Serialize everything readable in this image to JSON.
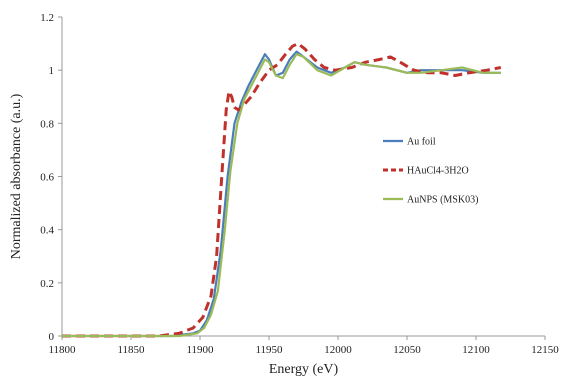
{
  "chart_data": {
    "type": "line",
    "title": "",
    "xlabel": "Energy (eV)",
    "ylabel": "Normalized absorbance (a.u.)",
    "xlim": [
      11800,
      12150
    ],
    "ylim": [
      0,
      1.2
    ],
    "x_ticks": [
      "11800",
      "11850",
      "11900",
      "11950",
      "12000",
      "12050",
      "12100",
      "12150"
    ],
    "y_ticks": [
      "0",
      "0.2",
      "0.4",
      "0.6",
      "0.8",
      "1",
      "1.2"
    ],
    "grid": false,
    "legend_position": "right",
    "series": [
      {
        "name": "Au foil",
        "color": "#4a7ebb",
        "dash": "solid",
        "points": [
          [
            11800,
            0.0
          ],
          [
            11880,
            0.0
          ],
          [
            11895,
            0.01
          ],
          [
            11900,
            0.02
          ],
          [
            11905,
            0.06
          ],
          [
            11910,
            0.14
          ],
          [
            11915,
            0.32
          ],
          [
            11920,
            0.6
          ],
          [
            11925,
            0.8
          ],
          [
            11930,
            0.88
          ],
          [
            11935,
            0.94
          ],
          [
            11940,
            0.99
          ],
          [
            11944,
            1.03
          ],
          [
            11947,
            1.06
          ],
          [
            11950,
            1.04
          ],
          [
            11955,
            0.98
          ],
          [
            11960,
            0.99
          ],
          [
            11965,
            1.04
          ],
          [
            11970,
            1.07
          ],
          [
            11975,
            1.05
          ],
          [
            11985,
            1.01
          ],
          [
            11995,
            0.99
          ],
          [
            12005,
            1.01
          ],
          [
            12012,
            1.03
          ],
          [
            12020,
            1.02
          ],
          [
            12035,
            1.01
          ],
          [
            12050,
            0.99
          ],
          [
            12060,
            1.0
          ],
          [
            12075,
            1.0
          ],
          [
            12090,
            1.0
          ],
          [
            12105,
            0.99
          ],
          [
            12118,
            0.99
          ]
        ]
      },
      {
        "name": "HAuCl4-3H2O",
        "color": "#c0312b",
        "dash": "dashed",
        "points": [
          [
            11800,
            0.0
          ],
          [
            11870,
            0.0
          ],
          [
            11885,
            0.01
          ],
          [
            11895,
            0.03
          ],
          [
            11902,
            0.07
          ],
          [
            11908,
            0.15
          ],
          [
            11912,
            0.3
          ],
          [
            11916,
            0.62
          ],
          [
            11919,
            0.85
          ],
          [
            11921,
            0.92
          ],
          [
            11923,
            0.9
          ],
          [
            11925,
            0.86
          ],
          [
            11928,
            0.85
          ],
          [
            11932,
            0.87
          ],
          [
            11937,
            0.9
          ],
          [
            11943,
            0.95
          ],
          [
            11950,
            1.0
          ],
          [
            11956,
            1.02
          ],
          [
            11962,
            1.06
          ],
          [
            11967,
            1.09
          ],
          [
            11971,
            1.1
          ],
          [
            11976,
            1.08
          ],
          [
            11983,
            1.04
          ],
          [
            11990,
            1.01
          ],
          [
            11998,
            1.0
          ],
          [
            12010,
            1.01
          ],
          [
            12020,
            1.03
          ],
          [
            12030,
            1.04
          ],
          [
            12038,
            1.05
          ],
          [
            12045,
            1.03
          ],
          [
            12055,
            1.0
          ],
          [
            12065,
            0.99
          ],
          [
            12075,
            0.99
          ],
          [
            12085,
            0.98
          ],
          [
            12095,
            0.99
          ],
          [
            12108,
            1.0
          ],
          [
            12118,
            1.01
          ]
        ]
      },
      {
        "name": "AuNPS (MSK03)",
        "color": "#9bbb59",
        "dash": "solid",
        "points": [
          [
            11800,
            0.0
          ],
          [
            11885,
            0.0
          ],
          [
            11898,
            0.01
          ],
          [
            11903,
            0.03
          ],
          [
            11908,
            0.08
          ],
          [
            11913,
            0.17
          ],
          [
            11918,
            0.4
          ],
          [
            11922,
            0.62
          ],
          [
            11927,
            0.8
          ],
          [
            11932,
            0.89
          ],
          [
            11937,
            0.94
          ],
          [
            11942,
            0.99
          ],
          [
            11947,
            1.04
          ],
          [
            11950,
            1.03
          ],
          [
            11955,
            0.98
          ],
          [
            11960,
            0.97
          ],
          [
            11965,
            1.02
          ],
          [
            11970,
            1.06
          ],
          [
            11975,
            1.05
          ],
          [
            11985,
            1.0
          ],
          [
            11995,
            0.98
          ],
          [
            12005,
            1.01
          ],
          [
            12012,
            1.03
          ],
          [
            12020,
            1.02
          ],
          [
            12035,
            1.01
          ],
          [
            12050,
            0.99
          ],
          [
            12060,
            0.99
          ],
          [
            12075,
            1.0
          ],
          [
            12090,
            1.01
          ],
          [
            12105,
            0.99
          ],
          [
            12118,
            0.99
          ]
        ]
      }
    ]
  }
}
